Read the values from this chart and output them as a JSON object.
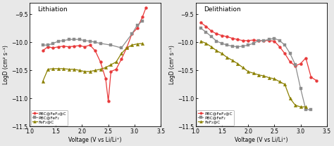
{
  "lithiation": {
    "red": {
      "x": [
        1.25,
        1.35,
        1.45,
        1.55,
        1.65,
        1.75,
        1.85,
        1.95,
        2.05,
        2.15,
        2.25,
        2.35,
        2.45,
        2.5,
        2.55,
        2.65,
        2.75,
        2.85,
        2.95,
        3.05,
        3.15,
        3.22
      ],
      "y": [
        -10.15,
        -10.08,
        -10.1,
        -10.08,
        -10.07,
        -10.08,
        -10.07,
        -10.06,
        -10.08,
        -10.05,
        -10.15,
        -10.35,
        -10.65,
        -11.05,
        -10.52,
        -10.48,
        -10.3,
        -10.1,
        -9.85,
        -9.75,
        -9.55,
        -9.38
      ]
    },
    "gray": {
      "x": [
        1.25,
        1.35,
        1.45,
        1.55,
        1.65,
        1.75,
        1.85,
        1.95,
        2.05,
        2.15,
        2.25,
        2.35,
        2.55,
        2.75,
        2.95,
        3.05,
        3.15
      ],
      "y": [
        -10.05,
        -10.05,
        -10.02,
        -9.98,
        -9.97,
        -9.95,
        -9.95,
        -9.95,
        -9.97,
        -9.98,
        -10.0,
        -10.02,
        -10.05,
        -10.1,
        -9.85,
        -9.7,
        -9.62
      ]
    },
    "olive": {
      "x": [
        1.25,
        1.35,
        1.45,
        1.55,
        1.65,
        1.75,
        1.85,
        1.95,
        2.05,
        2.15,
        2.25,
        2.35,
        2.45,
        2.55,
        2.65,
        2.75,
        2.85,
        2.95,
        3.05,
        3.15
      ],
      "y": [
        -10.7,
        -10.48,
        -10.47,
        -10.47,
        -10.47,
        -10.48,
        -10.48,
        -10.5,
        -10.52,
        -10.52,
        -10.5,
        -10.48,
        -10.45,
        -10.4,
        -10.35,
        -10.2,
        -10.1,
        -10.05,
        -10.03,
        -10.02
      ]
    }
  },
  "delithiation": {
    "red": {
      "x": [
        1.1,
        1.2,
        1.3,
        1.4,
        1.5,
        1.6,
        1.7,
        1.8,
        1.9,
        2.0,
        2.1,
        2.2,
        2.3,
        2.4,
        2.5,
        2.6,
        2.7,
        2.8,
        2.9,
        3.0,
        3.1,
        3.2,
        3.3
      ],
      "y": [
        -9.65,
        -9.72,
        -9.8,
        -9.85,
        -9.88,
        -9.9,
        -9.93,
        -9.95,
        -9.97,
        -9.97,
        -9.96,
        -9.97,
        -9.97,
        -9.97,
        -9.98,
        -10.08,
        -10.2,
        -10.35,
        -10.42,
        -10.38,
        -10.28,
        -10.62,
        -10.68
      ]
    },
    "gray": {
      "x": [
        1.1,
        1.2,
        1.3,
        1.4,
        1.5,
        1.6,
        1.7,
        1.8,
        1.9,
        2.0,
        2.1,
        2.2,
        2.3,
        2.4,
        2.5,
        2.6,
        2.7,
        2.8,
        2.9,
        3.0,
        3.1,
        3.2
      ],
      "y": [
        -9.75,
        -9.82,
        -9.9,
        -9.98,
        -10.02,
        -10.05,
        -10.07,
        -10.08,
        -10.07,
        -10.05,
        -10.02,
        -9.97,
        -9.97,
        -9.95,
        -9.93,
        -9.97,
        -10.05,
        -10.2,
        -10.4,
        -10.82,
        -11.2,
        -11.2
      ]
    },
    "olive": {
      "x": [
        1.1,
        1.2,
        1.3,
        1.4,
        1.5,
        1.6,
        1.7,
        1.8,
        1.9,
        2.0,
        2.1,
        2.2,
        2.3,
        2.4,
        2.5,
        2.6,
        2.7,
        2.8,
        2.9,
        3.0,
        3.1
      ],
      "y": [
        -9.98,
        -10.02,
        -10.08,
        -10.15,
        -10.2,
        -10.27,
        -10.32,
        -10.38,
        -10.45,
        -10.52,
        -10.55,
        -10.58,
        -10.6,
        -10.63,
        -10.65,
        -10.7,
        -10.75,
        -11.0,
        -11.12,
        -11.15,
        -11.15
      ]
    }
  },
  "xlim": [
    1.0,
    3.5
  ],
  "ylim": [
    -11.5,
    -9.3
  ],
  "yticks": [
    -11.5,
    -11.0,
    -10.5,
    -10.0,
    -9.5
  ],
  "xticks": [
    1.0,
    1.5,
    2.0,
    2.5,
    3.0,
    3.5
  ],
  "xlabel": "Voltage (V vs Li/Li⁺)",
  "ylabel": "LogD (cm² s⁻¹)",
  "color_red": "#e8393a",
  "color_gray": "#8c8c8c",
  "color_olive": "#8b8000",
  "label_red": "PBC@FeF₂@C",
  "label_gray": "PBC@FeF₂",
  "label_olive": "FeF₂@C",
  "title_left": "Lithiation",
  "title_right": "Delithiation",
  "bg_color": "#ffffff",
  "fig_bg_color": "#e8e8e8"
}
